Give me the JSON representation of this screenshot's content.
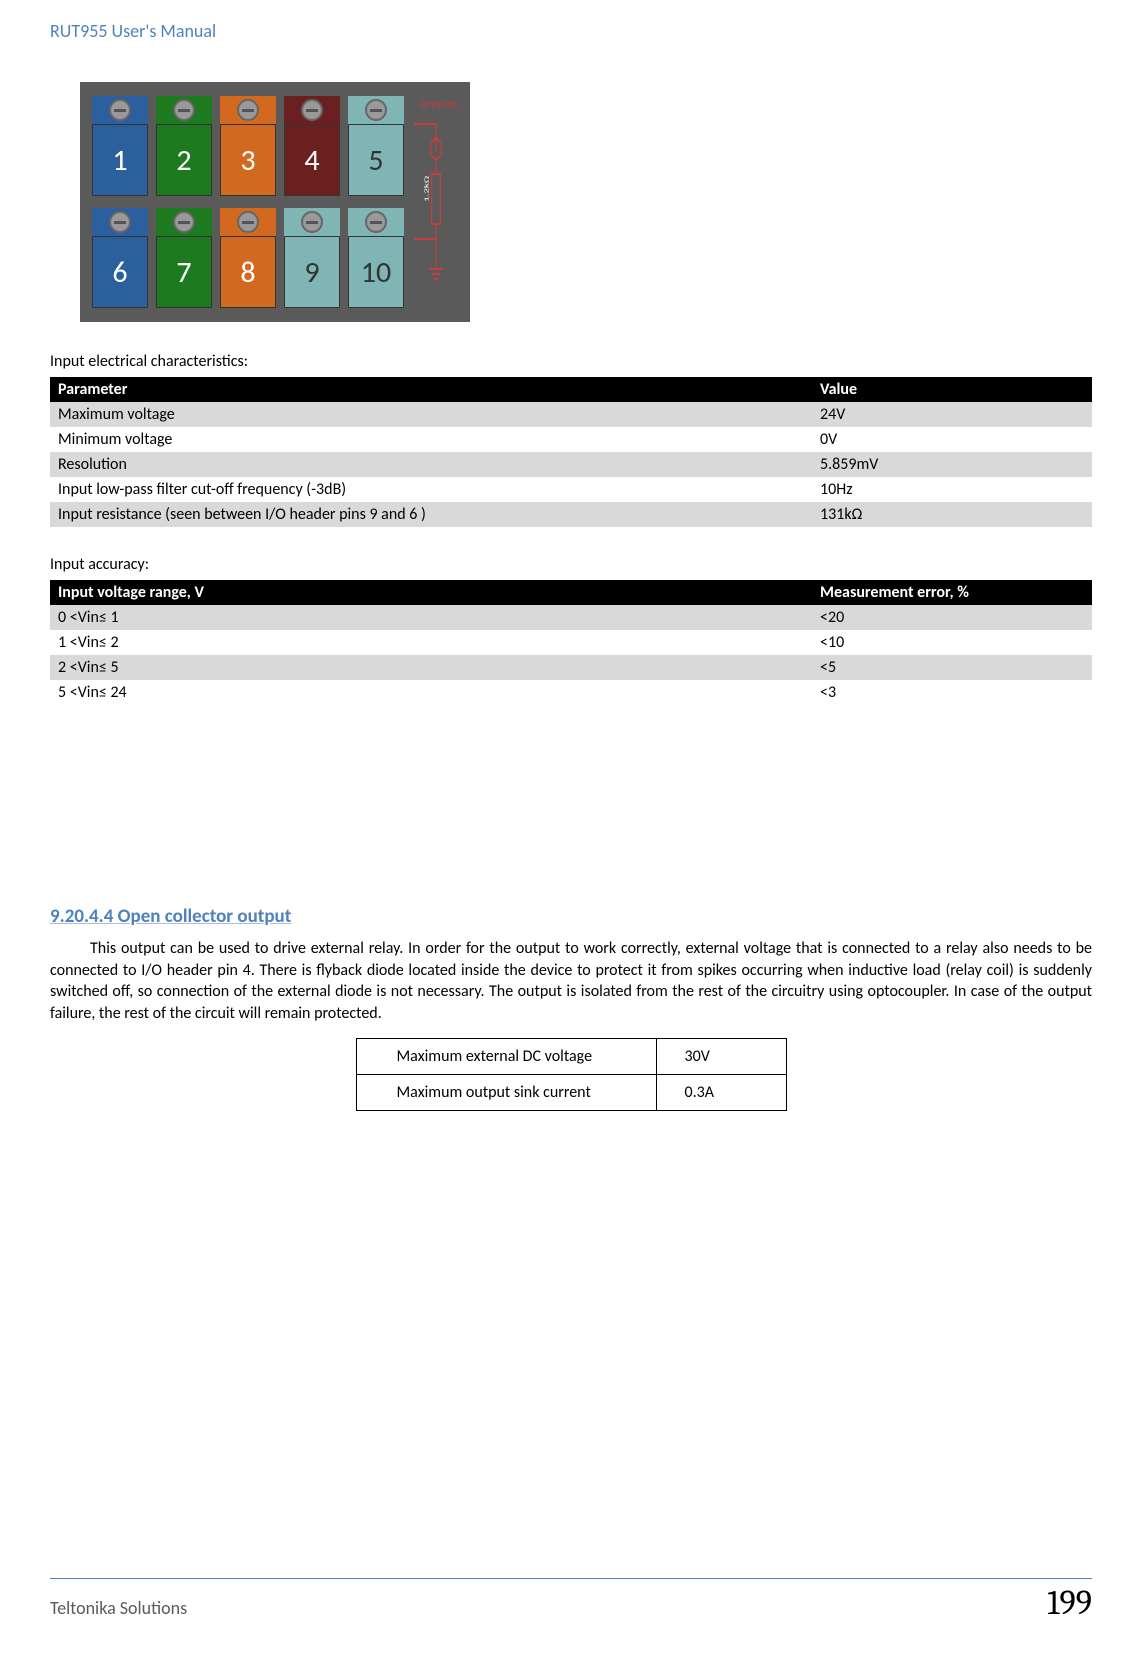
{
  "header": {
    "title": "RUT955 User's Manual"
  },
  "diagram": {
    "label": "Current source",
    "resistor": "1.2kΩ",
    "terminals_top": [
      {
        "n": "1",
        "color": "t-blue"
      },
      {
        "n": "2",
        "color": "t-green"
      },
      {
        "n": "3",
        "color": "t-orange"
      },
      {
        "n": "4",
        "color": "t-dred"
      },
      {
        "n": "5",
        "color": "t-teal"
      }
    ],
    "terminals_bottom": [
      {
        "n": "6",
        "color": "t-blue"
      },
      {
        "n": "7",
        "color": "t-green"
      },
      {
        "n": "8",
        "color": "t-orange"
      },
      {
        "n": "9",
        "color": "t-teal"
      },
      {
        "n": "10",
        "color": "t-teal"
      }
    ]
  },
  "table1": {
    "caption": "Input electrical characteristics:",
    "headers": [
      "Parameter",
      "Value"
    ],
    "rows": [
      [
        "Maximum voltage",
        "24V"
      ],
      [
        "Minimum voltage",
        "0V"
      ],
      [
        "Resolution",
        "5.859mV"
      ],
      [
        "Input low-pass  filter cut-off frequency (-3dB)",
        "10Hz"
      ],
      [
        "Input resistance (seen between I/O header pins 9 and 6 )",
        "131kΩ"
      ]
    ]
  },
  "table2": {
    "caption": "Input accuracy:",
    "headers": [
      "Input voltage range, V",
      "Measurement error, %"
    ],
    "rows": [
      [
        "0 <Vin≤ 1",
        "<20"
      ],
      [
        "1 <Vin≤ 2",
        "<10"
      ],
      [
        "2 <Vin≤ 5",
        "<5"
      ],
      [
        "5 <Vin≤ 24",
        "<3"
      ]
    ]
  },
  "section": {
    "number": "9.20.4.4",
    "title": "Open collector output",
    "body": "This output can be used to drive external relay. In order for the output to work correctly, external voltage that is connected to a relay also needs to be connected to I/O header pin 4. There is flyback diode located inside the device to protect it from spikes occurring when inductive load (relay coil) is suddenly switched off, so connection of the external diode is not necessary. The output is isolated from the rest of the circuitry using optocoupler. In case of the output failure, the rest of the circuit will remain protected."
  },
  "spec_table": {
    "rows": [
      [
        "Maximum external DC voltage",
        "30V"
      ],
      [
        "Maximum output sink current",
        "0.3A"
      ]
    ]
  },
  "footer": {
    "left": "Teltonika Solutions",
    "page": "199"
  }
}
